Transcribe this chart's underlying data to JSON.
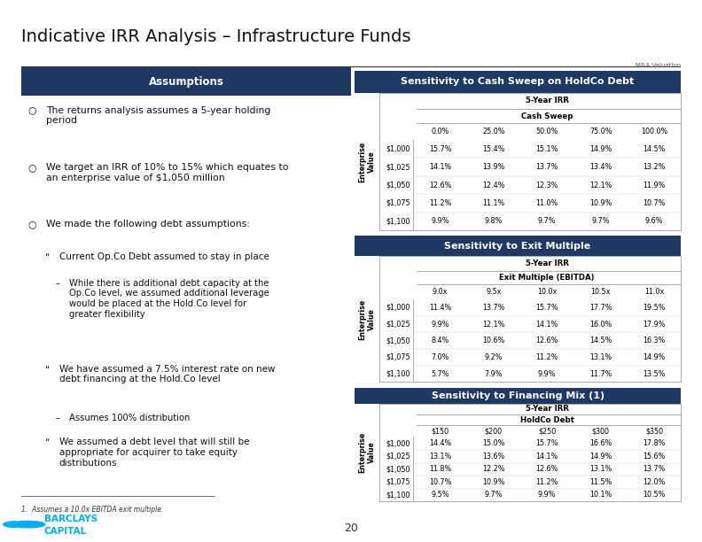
{
  "title": "Indicative IRR Analysis – Infrastructure Funds",
  "subtitle_right": "M&A Valuation",
  "bg_color": "#ffffff",
  "dark_blue": "#1F3864",
  "assumptions_header": "Assumptions",
  "footnote": "1.  Assumes a 10.0x EBITDA exit multiple.",
  "page_number": "20",
  "table1_title": "Sensitivity to Cash Sweep on HoldCo Debt",
  "table1_row_header": "5-Year IRR",
  "table1_col_header": "Cash Sweep",
  "table1_col_label": "Enterprise\nValue",
  "table1_cols": [
    "0.0%",
    "25.0%",
    "50.0%",
    "75.0%",
    "100.0%"
  ],
  "table1_rows": [
    "$1,000",
    "$1,025",
    "$1,050",
    "$1,075",
    "$1,100"
  ],
  "table1_data": [
    [
      "15.7%",
      "15.4%",
      "15.1%",
      "14.9%",
      "14.5%"
    ],
    [
      "14.1%",
      "13.9%",
      "13.7%",
      "13.4%",
      "13.2%"
    ],
    [
      "12.6%",
      "12.4%",
      "12.3%",
      "12.1%",
      "11.9%"
    ],
    [
      "11.2%",
      "11.1%",
      "11.0%",
      "10.9%",
      "10.7%"
    ],
    [
      "9.9%",
      "9.8%",
      "9.7%",
      "9.7%",
      "9.6%"
    ]
  ],
  "table2_title": "Sensitivity to Exit Multiple",
  "table2_row_header": "5-Year IRR",
  "table2_col_header": "Exit Multiple (EBITDA)",
  "table2_col_label": "Enterprise\nValue",
  "table2_cols": [
    "9.0x",
    "9.5x",
    "10.0x",
    "10.5x",
    "11.0x"
  ],
  "table2_rows": [
    "$1,000",
    "$1,025",
    "$1,050",
    "$1,075",
    "$1,100"
  ],
  "table2_data": [
    [
      "11.4%",
      "13.7%",
      "15.7%",
      "17.7%",
      "19.5%"
    ],
    [
      "9.9%",
      "12.1%",
      "14.1%",
      "16.0%",
      "17.9%"
    ],
    [
      "8.4%",
      "10.6%",
      "12.6%",
      "14.5%",
      "16.3%"
    ],
    [
      "7.0%",
      "9.2%",
      "11.2%",
      "13.1%",
      "14.9%"
    ],
    [
      "5.7%",
      "7.9%",
      "9.9%",
      "11.7%",
      "13.5%"
    ]
  ],
  "table3_title": "Sensitivity to Financing Mix",
  "table3_superscript": " (1)",
  "table3_row_header": "5-Year IRR",
  "table3_col_header": "HoldCo Debt",
  "table3_col_label": "Enterprise\nValue",
  "table3_cols": [
    "$150",
    "$200",
    "$250",
    "$300",
    "$350"
  ],
  "table3_rows": [
    "$1,000",
    "$1,025",
    "$1,050",
    "$1,075",
    "$1,100"
  ],
  "table3_data": [
    [
      "14.4%",
      "15.0%",
      "15.7%",
      "16.6%",
      "17.8%"
    ],
    [
      "13.1%",
      "13.6%",
      "14.1%",
      "14.9%",
      "15.6%"
    ],
    [
      "11.8%",
      "12.2%",
      "12.6%",
      "13.1%",
      "13.7%"
    ],
    [
      "10.7%",
      "10.9%",
      "11.2%",
      "11.5%",
      "12.0%"
    ],
    [
      "9.5%",
      "9.7%",
      "9.9%",
      "10.1%",
      "10.5%"
    ]
  ],
  "barclays_blue": "#00AEEF",
  "barclays_dark": "#1F3864",
  "bullet_items": [
    {
      "level": 0,
      "sym": "○",
      "text": "The returns analysis assumes a 5-year holding\nperiod"
    },
    {
      "level": 0,
      "sym": "○",
      "text": "We target an IRR of 10% to 15% which equates to\nan enterprise value of $1,050 million"
    },
    {
      "level": 0,
      "sym": "○",
      "text": "We made the following debt assumptions:"
    },
    {
      "level": 1,
      "sym": "“",
      "text": "Current Op.Co Debt assumed to stay in place"
    },
    {
      "level": 2,
      "sym": "–",
      "text": "While there is additional debt capacity at the\nOp.Co level, we assumed additional leverage\nwould be placed at the Hold.Co level for\ngreater flexibility"
    },
    {
      "level": 1,
      "sym": "“",
      "text": "We have assumed a 7.5% interest rate on new\ndebt financing at the Hold.Co level"
    },
    {
      "level": 2,
      "sym": "–",
      "text": "Assumes 100% distribution"
    },
    {
      "level": 1,
      "sym": "“",
      "text": "We assumed a debt level that will still be\nappropriate for acquirer to take equity\ndistributions"
    }
  ]
}
